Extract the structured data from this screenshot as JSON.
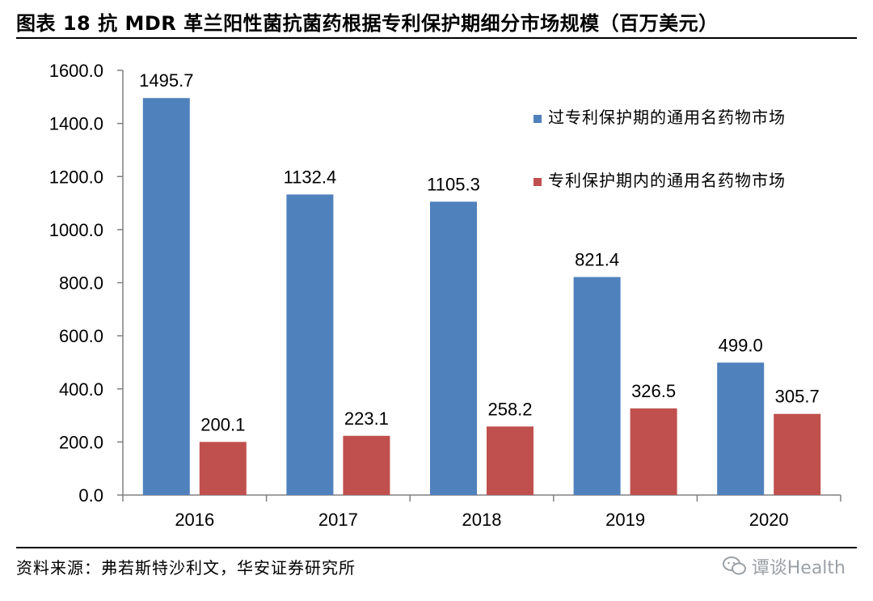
{
  "header": {
    "title": "图表 18 抗 MDR 革兰阳性菌抗菌药根据专利保护期细分市场规模（百万美元）"
  },
  "footer": {
    "source": "资料来源：弗若斯特沙利文，华安证券研究所",
    "watermark": "谭谈Health"
  },
  "colors": {
    "blue": "#4f81bd",
    "red": "#c0504d",
    "axis": "#808080"
  },
  "chart_data": {
    "type": "bar",
    "categories": [
      "2016",
      "2017",
      "2018",
      "2019",
      "2020"
    ],
    "series": [
      {
        "name": "过专利保护期的通用名药物市场",
        "values": [
          1495.7,
          1132.4,
          1105.3,
          821.4,
          499.0
        ],
        "labels": [
          "1495.7",
          "1132.4",
          "1105.3",
          "821.4",
          "499.0"
        ]
      },
      {
        "name": "专利保护期内的通用名药物市场",
        "values": [
          200.1,
          223.1,
          258.2,
          326.5,
          305.7
        ],
        "labels": [
          "200.1",
          "223.1",
          "258.2",
          "326.5",
          "305.7"
        ]
      }
    ],
    "ylim": [
      0,
      1600
    ],
    "yticks": [
      "0.0",
      "200.0",
      "400.0",
      "600.0",
      "800.0",
      "1000.0",
      "1200.0",
      "1400.0",
      "1600.0"
    ],
    "legend_position": "top-right",
    "grid": false
  }
}
